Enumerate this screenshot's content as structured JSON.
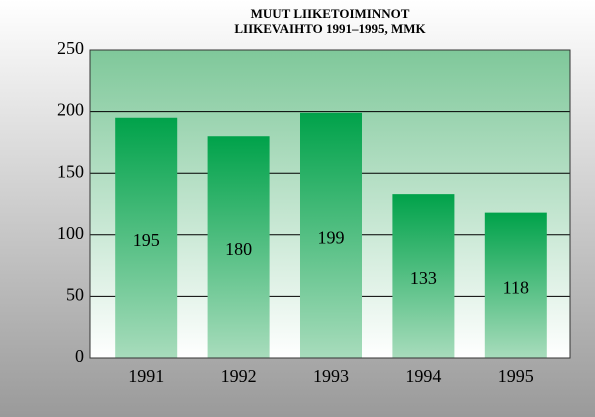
{
  "chart_data": {
    "type": "bar",
    "title": "MUUT LIIKETOIMINNOT",
    "subtitle": "LIIKEVAIHTO 1991–1995, MMK",
    "categories": [
      "1991",
      "1992",
      "1993",
      "1994",
      "1995"
    ],
    "values": [
      195,
      180,
      199,
      133,
      118
    ],
    "color": "#00a24a",
    "ylim": [
      0,
      250
    ],
    "yticks": [
      0,
      50,
      100,
      150,
      200,
      250
    ],
    "grid": true
  }
}
